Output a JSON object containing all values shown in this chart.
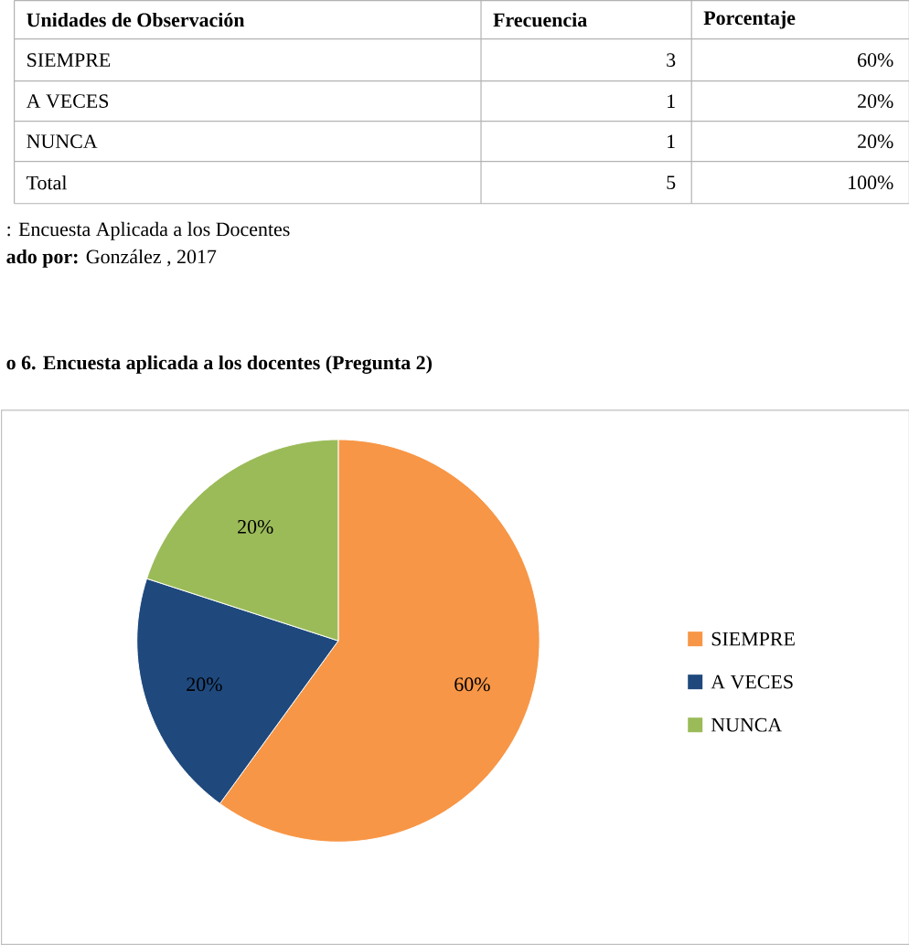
{
  "chart_data": {
    "type": "pie",
    "title": "o 6. Encuesta aplicada a los docentes (Pregunta 2)",
    "categories": [
      "SIEMPRE",
      "A VECES",
      "NUNCA"
    ],
    "values": [
      60,
      20,
      20
    ],
    "colors": [
      "#f79646",
      "#1f497d",
      "#9bbb59"
    ],
    "value_labels": [
      "60%",
      "20%",
      "20%"
    ],
    "legend": "right",
    "annotations": [
      "Unidades de Observación",
      "Frecuencia",
      "Porcentaje",
      "SIEMPRE",
      "3",
      "60%",
      "A VECES",
      "1",
      "20%",
      "NUNCA",
      "1",
      "20%",
      "Total",
      "5",
      "100%",
      ": Encuesta Aplicada a los Docentes",
      "**ado por:** González , 2017"
    ]
  }
}
